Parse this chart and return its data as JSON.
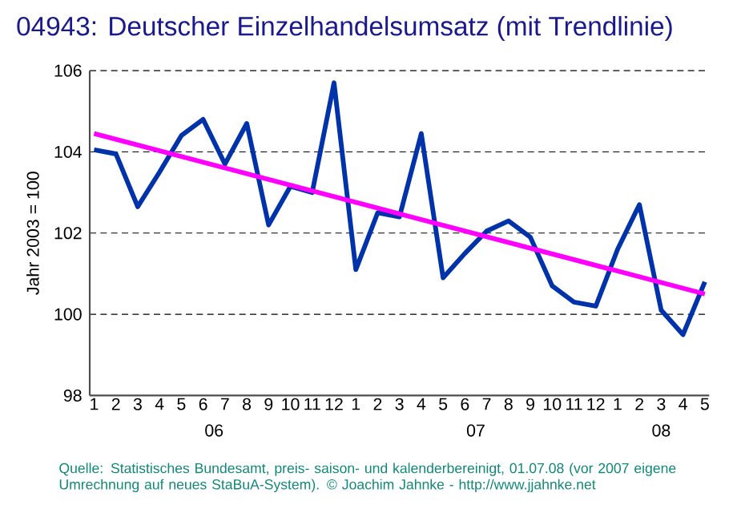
{
  "chart_data": {
    "type": "line",
    "title": "04943: Deutscher Einzelhandelsumsatz (mit Trendlinie)",
    "ylabel": "Jahr 2003 = 100",
    "categories": [
      "1",
      "2",
      "3",
      "4",
      "5",
      "6",
      "7",
      "8",
      "9",
      "10",
      "11",
      "12",
      "1",
      "2",
      "3",
      "4",
      "5",
      "6",
      "7",
      "8",
      "9",
      "10",
      "11",
      "12",
      "1",
      "2",
      "3",
      "4",
      "5"
    ],
    "series": [
      {
        "color": "#0033aa",
        "values": [
          104.05,
          103.95,
          102.65,
          103.5,
          104.4,
          104.8,
          103.7,
          104.7,
          102.2,
          103.15,
          103.0,
          105.7,
          101.1,
          102.5,
          102.4,
          104.45,
          100.9,
          101.5,
          102.05,
          102.3,
          101.9,
          100.7,
          100.3,
          100.2,
          101.6,
          102.7,
          100.1,
          99.5,
          100.8
        ]
      },
      {
        "color": "#ff00ff",
        "values": [
          104.45,
          null,
          null,
          null,
          null,
          null,
          null,
          null,
          null,
          null,
          null,
          null,
          null,
          null,
          null,
          null,
          null,
          null,
          null,
          null,
          null,
          null,
          null,
          null,
          null,
          null,
          null,
          null,
          100.5
        ]
      }
    ],
    "ylim": [
      98,
      106
    ],
    "yticks": [
      98,
      100,
      102,
      104,
      106
    ],
    "grid": "y",
    "annotations": [
      "06",
      "07",
      "08",
      "Quelle: Statistisches Bundesamt, preis- saison- und kalenderbereinigt, 01.07.08 (vor 2007 eigene Umrechnung auf neues StaBuA-System). © Joachim Jahnke - http://www.jjahnke.net"
    ]
  }
}
